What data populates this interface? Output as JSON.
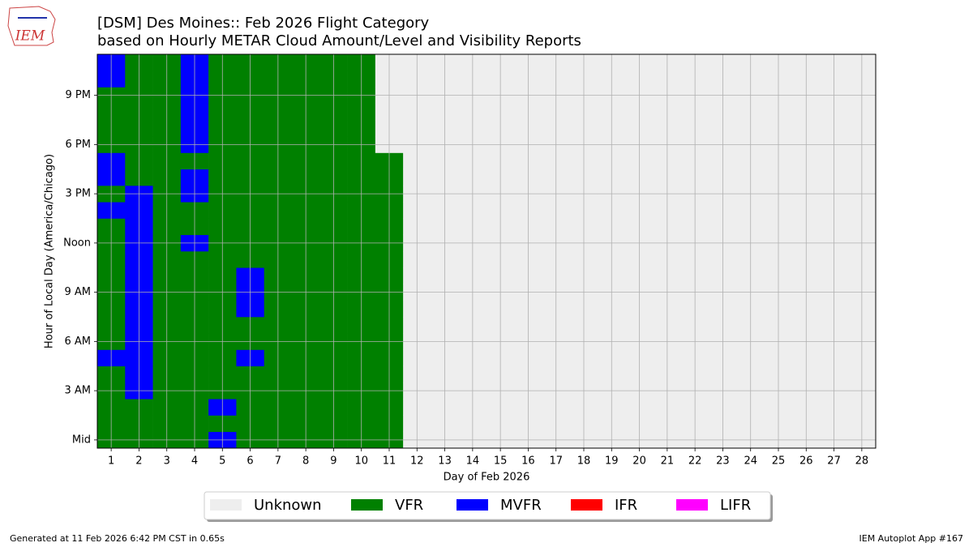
{
  "chart_data": {
    "type": "heatmap",
    "logo_text": "IEM",
    "title": "[DSM] Des Moines:: Feb 2026 Flight Category",
    "subtitle": "based on Hourly METAR Cloud Amount/Level and Visibility Reports",
    "xlabel": "Day of Feb 2026",
    "ylabel": "Hour of Local Day (America/Chicago)",
    "footer_left": "Generated at 11 Feb 2026 6:42 PM CST in 0.65s",
    "footer_right": "IEM Autoplot App #167",
    "grid": true,
    "legend_position": "bottom",
    "legend": [
      {
        "name": "Unknown",
        "color": "#eeeeee"
      },
      {
        "name": "VFR",
        "color": "#008000"
      },
      {
        "name": "MVFR",
        "color": "#0000ff"
      },
      {
        "name": "IFR",
        "color": "#ff0000"
      },
      {
        "name": "LIFR",
        "color": "#ff00ff"
      }
    ],
    "x": [
      1,
      2,
      3,
      4,
      5,
      6,
      7,
      8,
      9,
      10,
      11,
      12,
      13,
      14,
      15,
      16,
      17,
      18,
      19,
      20,
      21,
      22,
      23,
      24,
      25,
      26,
      27,
      28
    ],
    "xlim": [
      0.5,
      28.5
    ],
    "xticks": [
      1,
      2,
      3,
      4,
      5,
      6,
      7,
      8,
      9,
      10,
      11,
      12,
      13,
      14,
      15,
      16,
      17,
      18,
      19,
      20,
      21,
      22,
      23,
      24,
      25,
      26,
      27,
      28
    ],
    "y": [
      0,
      1,
      2,
      3,
      4,
      5,
      6,
      7,
      8,
      9,
      10,
      11,
      12,
      13,
      14,
      15,
      16,
      17,
      18,
      19,
      20,
      21,
      22,
      23
    ],
    "ylim": [
      -0.5,
      23.5
    ],
    "yticks": [
      {
        "value": 0,
        "label": "Mid"
      },
      {
        "value": 3,
        "label": "3 AM"
      },
      {
        "value": 6,
        "label": "6 AM"
      },
      {
        "value": 9,
        "label": "9 AM"
      },
      {
        "value": 12,
        "label": "Noon"
      },
      {
        "value": 15,
        "label": "3 PM"
      },
      {
        "value": 18,
        "label": "6 PM"
      },
      {
        "value": 21,
        "label": "9 PM"
      }
    ],
    "values": [
      [
        "VFR",
        "VFR",
        "VFR",
        "VFR",
        "VFR",
        "MVFR",
        "VFR",
        "VFR",
        "VFR",
        "VFR",
        "VFR",
        "VFR",
        "VFR",
        "VFR",
        "MVFR",
        "VFR",
        "MVFR",
        "MVFR",
        "VFR",
        "VFR",
        "VFR",
        "VFR",
        "MVFR",
        "MVFR"
      ],
      [
        "VFR",
        "VFR",
        "VFR",
        "MVFR",
        "MVFR",
        "MVFR",
        "MVFR",
        "MVFR",
        "MVFR",
        "MVFR",
        "MVFR",
        "MVFR",
        "MVFR",
        "MVFR",
        "MVFR",
        "MVFR",
        "VFR",
        "VFR",
        "VFR",
        "VFR",
        "VFR",
        "VFR",
        "VFR",
        "VFR"
      ],
      [
        "VFR",
        "VFR",
        "VFR",
        "VFR",
        "VFR",
        "VFR",
        "VFR",
        "VFR",
        "VFR",
        "VFR",
        "VFR",
        "VFR",
        "VFR",
        "VFR",
        "VFR",
        "VFR",
        "VFR",
        "VFR",
        "VFR",
        "VFR",
        "VFR",
        "VFR",
        "VFR",
        "VFR"
      ],
      [
        "VFR",
        "VFR",
        "VFR",
        "VFR",
        "VFR",
        "VFR",
        "VFR",
        "VFR",
        "VFR",
        "VFR",
        "VFR",
        "VFR",
        "MVFR",
        "VFR",
        "VFR",
        "MVFR",
        "MVFR",
        "VFR",
        "MVFR",
        "MVFR",
        "MVFR",
        "MVFR",
        "MVFR",
        "MVFR"
      ],
      [
        "MVFR",
        "VFR",
        "MVFR",
        "VFR",
        "VFR",
        "VFR",
        "VFR",
        "VFR",
        "VFR",
        "VFR",
        "VFR",
        "VFR",
        "VFR",
        "VFR",
        "VFR",
        "VFR",
        "VFR",
        "VFR",
        "VFR",
        "VFR",
        "VFR",
        "VFR",
        "VFR",
        "VFR"
      ],
      [
        "VFR",
        "VFR",
        "VFR",
        "VFR",
        "VFR",
        "MVFR",
        "VFR",
        "VFR",
        "MVFR",
        "MVFR",
        "MVFR",
        "VFR",
        "VFR",
        "VFR",
        "VFR",
        "VFR",
        "VFR",
        "VFR",
        "VFR",
        "VFR",
        "VFR",
        "VFR",
        "VFR",
        "VFR"
      ],
      [
        "VFR",
        "VFR",
        "VFR",
        "VFR",
        "VFR",
        "VFR",
        "VFR",
        "VFR",
        "VFR",
        "VFR",
        "VFR",
        "VFR",
        "VFR",
        "VFR",
        "VFR",
        "VFR",
        "VFR",
        "VFR",
        "VFR",
        "VFR",
        "VFR",
        "VFR",
        "VFR",
        "VFR"
      ],
      [
        "VFR",
        "VFR",
        "VFR",
        "VFR",
        "VFR",
        "VFR",
        "VFR",
        "VFR",
        "VFR",
        "VFR",
        "VFR",
        "VFR",
        "VFR",
        "VFR",
        "VFR",
        "VFR",
        "VFR",
        "VFR",
        "VFR",
        "VFR",
        "VFR",
        "VFR",
        "VFR",
        "VFR"
      ],
      [
        "VFR",
        "VFR",
        "VFR",
        "VFR",
        "VFR",
        "VFR",
        "VFR",
        "VFR",
        "VFR",
        "VFR",
        "VFR",
        "VFR",
        "VFR",
        "VFR",
        "VFR",
        "VFR",
        "VFR",
        "VFR",
        "VFR",
        "VFR",
        "VFR",
        "VFR",
        "VFR",
        "VFR"
      ],
      [
        "VFR",
        "VFR",
        "VFR",
        "VFR",
        "VFR",
        "VFR",
        "VFR",
        "VFR",
        "VFR",
        "VFR",
        "VFR",
        "VFR",
        "VFR",
        "VFR",
        "VFR",
        "VFR",
        "VFR",
        "VFR",
        "VFR",
        "VFR",
        "VFR",
        "VFR",
        "VFR",
        "VFR"
      ],
      [
        "VFR",
        "VFR",
        "VFR",
        "VFR",
        "VFR",
        "VFR",
        "VFR",
        "VFR",
        "VFR",
        "VFR",
        "VFR",
        "VFR",
        "VFR",
        "VFR",
        "VFR",
        "VFR",
        "VFR",
        "VFR",
        "Unknown",
        "Unknown",
        "Unknown",
        "Unknown",
        "Unknown",
        "Unknown"
      ],
      [
        "Unknown",
        "Unknown",
        "Unknown",
        "Unknown",
        "Unknown",
        "Unknown",
        "Unknown",
        "Unknown",
        "Unknown",
        "Unknown",
        "Unknown",
        "Unknown",
        "Unknown",
        "Unknown",
        "Unknown",
        "Unknown",
        "Unknown",
        "Unknown",
        "Unknown",
        "Unknown",
        "Unknown",
        "Unknown",
        "Unknown",
        "Unknown"
      ],
      [
        "Unknown",
        "Unknown",
        "Unknown",
        "Unknown",
        "Unknown",
        "Unknown",
        "Unknown",
        "Unknown",
        "Unknown",
        "Unknown",
        "Unknown",
        "Unknown",
        "Unknown",
        "Unknown",
        "Unknown",
        "Unknown",
        "Unknown",
        "Unknown",
        "Unknown",
        "Unknown",
        "Unknown",
        "Unknown",
        "Unknown",
        "Unknown"
      ],
      [
        "Unknown",
        "Unknown",
        "Unknown",
        "Unknown",
        "Unknown",
        "Unknown",
        "Unknown",
        "Unknown",
        "Unknown",
        "Unknown",
        "Unknown",
        "Unknown",
        "Unknown",
        "Unknown",
        "Unknown",
        "Unknown",
        "Unknown",
        "Unknown",
        "Unknown",
        "Unknown",
        "Unknown",
        "Unknown",
        "Unknown",
        "Unknown"
      ],
      [
        "Unknown",
        "Unknown",
        "Unknown",
        "Unknown",
        "Unknown",
        "Unknown",
        "Unknown",
        "Unknown",
        "Unknown",
        "Unknown",
        "Unknown",
        "Unknown",
        "Unknown",
        "Unknown",
        "Unknown",
        "Unknown",
        "Unknown",
        "Unknown",
        "Unknown",
        "Unknown",
        "Unknown",
        "Unknown",
        "Unknown",
        "Unknown"
      ],
      [
        "Unknown",
        "Unknown",
        "Unknown",
        "Unknown",
        "Unknown",
        "Unknown",
        "Unknown",
        "Unknown",
        "Unknown",
        "Unknown",
        "Unknown",
        "Unknown",
        "Unknown",
        "Unknown",
        "Unknown",
        "Unknown",
        "Unknown",
        "Unknown",
        "Unknown",
        "Unknown",
        "Unknown",
        "Unknown",
        "Unknown",
        "Unknown"
      ],
      [
        "Unknown",
        "Unknown",
        "Unknown",
        "Unknown",
        "Unknown",
        "Unknown",
        "Unknown",
        "Unknown",
        "Unknown",
        "Unknown",
        "Unknown",
        "Unknown",
        "Unknown",
        "Unknown",
        "Unknown",
        "Unknown",
        "Unknown",
        "Unknown",
        "Unknown",
        "Unknown",
        "Unknown",
        "Unknown",
        "Unknown",
        "Unknown"
      ],
      [
        "Unknown",
        "Unknown",
        "Unknown",
        "Unknown",
        "Unknown",
        "Unknown",
        "Unknown",
        "Unknown",
        "Unknown",
        "Unknown",
        "Unknown",
        "Unknown",
        "Unknown",
        "Unknown",
        "Unknown",
        "Unknown",
        "Unknown",
        "Unknown",
        "Unknown",
        "Unknown",
        "Unknown",
        "Unknown",
        "Unknown",
        "Unknown"
      ],
      [
        "Unknown",
        "Unknown",
        "Unknown",
        "Unknown",
        "Unknown",
        "Unknown",
        "Unknown",
        "Unknown",
        "Unknown",
        "Unknown",
        "Unknown",
        "Unknown",
        "Unknown",
        "Unknown",
        "Unknown",
        "Unknown",
        "Unknown",
        "Unknown",
        "Unknown",
        "Unknown",
        "Unknown",
        "Unknown",
        "Unknown",
        "Unknown"
      ],
      [
        "Unknown",
        "Unknown",
        "Unknown",
        "Unknown",
        "Unknown",
        "Unknown",
        "Unknown",
        "Unknown",
        "Unknown",
        "Unknown",
        "Unknown",
        "Unknown",
        "Unknown",
        "Unknown",
        "Unknown",
        "Unknown",
        "Unknown",
        "Unknown",
        "Unknown",
        "Unknown",
        "Unknown",
        "Unknown",
        "Unknown",
        "Unknown"
      ],
      [
        "Unknown",
        "Unknown",
        "Unknown",
        "Unknown",
        "Unknown",
        "Unknown",
        "Unknown",
        "Unknown",
        "Unknown",
        "Unknown",
        "Unknown",
        "Unknown",
        "Unknown",
        "Unknown",
        "Unknown",
        "Unknown",
        "Unknown",
        "Unknown",
        "Unknown",
        "Unknown",
        "Unknown",
        "Unknown",
        "Unknown",
        "Unknown"
      ],
      [
        "Unknown",
        "Unknown",
        "Unknown",
        "Unknown",
        "Unknown",
        "Unknown",
        "Unknown",
        "Unknown",
        "Unknown",
        "Unknown",
        "Unknown",
        "Unknown",
        "Unknown",
        "Unknown",
        "Unknown",
        "Unknown",
        "Unknown",
        "Unknown",
        "Unknown",
        "Unknown",
        "Unknown",
        "Unknown",
        "Unknown",
        "Unknown"
      ],
      [
        "Unknown",
        "Unknown",
        "Unknown",
        "Unknown",
        "Unknown",
        "Unknown",
        "Unknown",
        "Unknown",
        "Unknown",
        "Unknown",
        "Unknown",
        "Unknown",
        "Unknown",
        "Unknown",
        "Unknown",
        "Unknown",
        "Unknown",
        "Unknown",
        "Unknown",
        "Unknown",
        "Unknown",
        "Unknown",
        "Unknown",
        "Unknown"
      ],
      [
        "Unknown",
        "Unknown",
        "Unknown",
        "Unknown",
        "Unknown",
        "Unknown",
        "Unknown",
        "Unknown",
        "Unknown",
        "Unknown",
        "Unknown",
        "Unknown",
        "Unknown",
        "Unknown",
        "Unknown",
        "Unknown",
        "Unknown",
        "Unknown",
        "Unknown",
        "Unknown",
        "Unknown",
        "Unknown",
        "Unknown",
        "Unknown"
      ],
      [
        "Unknown",
        "Unknown",
        "Unknown",
        "Unknown",
        "Unknown",
        "Unknown",
        "Unknown",
        "Unknown",
        "Unknown",
        "Unknown",
        "Unknown",
        "Unknown",
        "Unknown",
        "Unknown",
        "Unknown",
        "Unknown",
        "Unknown",
        "Unknown",
        "Unknown",
        "Unknown",
        "Unknown",
        "Unknown",
        "Unknown",
        "Unknown"
      ],
      [
        "Unknown",
        "Unknown",
        "Unknown",
        "Unknown",
        "Unknown",
        "Unknown",
        "Unknown",
        "Unknown",
        "Unknown",
        "Unknown",
        "Unknown",
        "Unknown",
        "Unknown",
        "Unknown",
        "Unknown",
        "Unknown",
        "Unknown",
        "Unknown",
        "Unknown",
        "Unknown",
        "Unknown",
        "Unknown",
        "Unknown",
        "Unknown"
      ],
      [
        "Unknown",
        "Unknown",
        "Unknown",
        "Unknown",
        "Unknown",
        "Unknown",
        "Unknown",
        "Unknown",
        "Unknown",
        "Unknown",
        "Unknown",
        "Unknown",
        "Unknown",
        "Unknown",
        "Unknown",
        "Unknown",
        "Unknown",
        "Unknown",
        "Unknown",
        "Unknown",
        "Unknown",
        "Unknown",
        "Unknown",
        "Unknown"
      ],
      [
        "Unknown",
        "Unknown",
        "Unknown",
        "Unknown",
        "Unknown",
        "Unknown",
        "Unknown",
        "Unknown",
        "Unknown",
        "Unknown",
        "Unknown",
        "Unknown",
        "Unknown",
        "Unknown",
        "Unknown",
        "Unknown",
        "Unknown",
        "Unknown",
        "Unknown",
        "Unknown",
        "Unknown",
        "Unknown",
        "Unknown",
        "Unknown"
      ]
    ]
  }
}
